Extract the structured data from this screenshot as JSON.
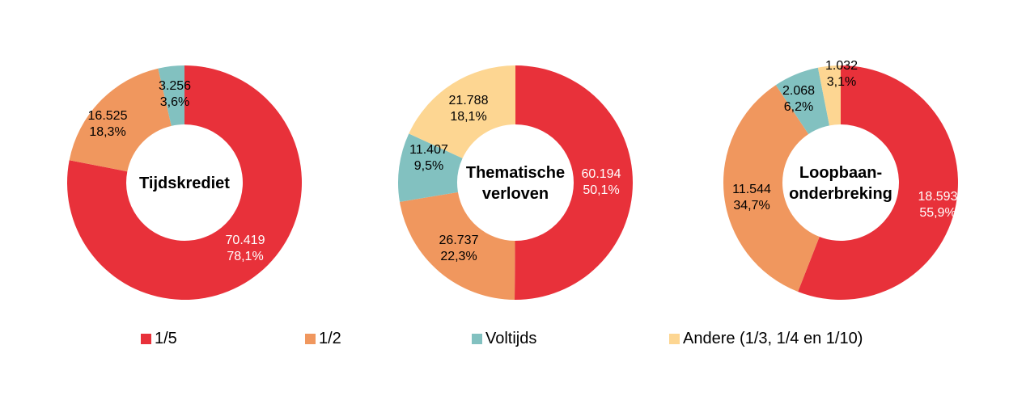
{
  "colors": {
    "s1_5": "#e8313a",
    "s1_2": "#f0975e",
    "voltijds": "#82c1c0",
    "andere": "#fdd692"
  },
  "legend": [
    {
      "label": "1/5",
      "color": "#e8313a"
    },
    {
      "label": "1/2",
      "color": "#f0975e"
    },
    {
      "label": "Voltijds",
      "color": "#82c1c0"
    },
    {
      "label": "Andere (1/3, 1/4 en 1/10)",
      "color": "#fdd692"
    }
  ],
  "chart_data": [
    {
      "type": "pie",
      "title": "Tijdskrediet",
      "categories": [
        "1/5",
        "1/2",
        "Voltijds",
        "Andere (1/3, 1/4 en 1/10)"
      ],
      "values": [
        70419,
        16525,
        3256,
        0
      ],
      "labels": [
        "70.419",
        "16.525",
        "3.256",
        ""
      ],
      "percentages": [
        "78,1%",
        "18,3%",
        "3,6%",
        ""
      ],
      "donut": true
    },
    {
      "type": "pie",
      "title": "Thematische verloven",
      "categories": [
        "1/5",
        "1/2",
        "Voltijds",
        "Andere (1/3, 1/4 en 1/10)"
      ],
      "values": [
        60194,
        26737,
        11407,
        21788
      ],
      "labels": [
        "60.194",
        "26.737",
        "11.407",
        "21.788"
      ],
      "percentages": [
        "50,1%",
        "22,3%",
        "9,5%",
        "18,1%"
      ],
      "donut": true
    },
    {
      "type": "pie",
      "title": "Loopbaan-onderbreking",
      "categories": [
        "1/5",
        "1/2",
        "Voltijds",
        "Andere (1/3, 1/4 en 1/10)"
      ],
      "values": [
        18593,
        11544,
        2068,
        1032
      ],
      "labels": [
        "18.593",
        "11.544",
        "2.068",
        "1.032"
      ],
      "percentages": [
        "55,9%",
        "34,7%",
        "6,2%",
        "3,1%"
      ],
      "donut": true
    }
  ],
  "titles": {
    "c1": [
      "Tijdskrediet"
    ],
    "c2": [
      "Thematische",
      "verloven"
    ],
    "c3": [
      "Loopbaan-",
      "onderbreking"
    ]
  }
}
